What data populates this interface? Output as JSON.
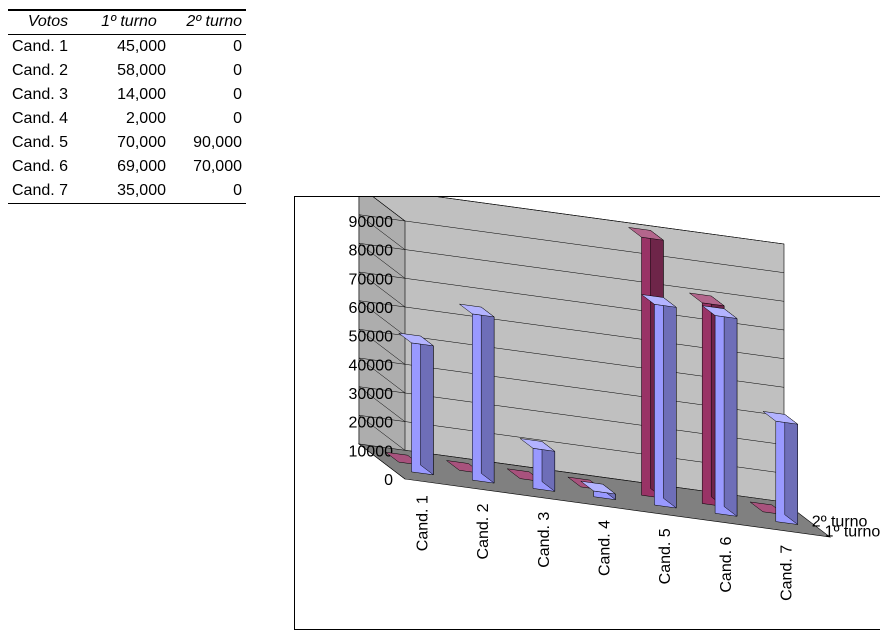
{
  "table": {
    "headers": [
      "Votos",
      "1º turno",
      "2º turno"
    ],
    "rows": [
      [
        "Cand. 1",
        "45,000",
        "0"
      ],
      [
        "Cand. 2",
        "58,000",
        "0"
      ],
      [
        "Cand. 3",
        "14,000",
        "0"
      ],
      [
        "Cand. 4",
        "2,000",
        "0"
      ],
      [
        "Cand. 5",
        "70,000",
        "90,000"
      ],
      [
        "Cand. 6",
        "69,000",
        "70,000"
      ],
      [
        "Cand. 7",
        "35,000",
        "0"
      ]
    ]
  },
  "chart_data": {
    "type": "bar",
    "style": "3d-column",
    "categories": [
      "Cand. 1",
      "Cand. 2",
      "Cand. 3",
      "Cand. 4",
      "Cand. 5",
      "Cand. 6",
      "Cand. 7"
    ],
    "series": [
      {
        "name": "1º turno",
        "values": [
          45000,
          58000,
          14000,
          2000,
          70000,
          69000,
          35000
        ],
        "color": "#9999ff"
      },
      {
        "name": "2º turno",
        "values": [
          0,
          0,
          0,
          0,
          90000,
          70000,
          0
        ],
        "color": "#993366"
      }
    ],
    "yticks": [
      "0",
      "10000",
      "20000",
      "30000",
      "40000",
      "50000",
      "60000",
      "70000",
      "80000",
      "90000"
    ],
    "ylim": [
      0,
      90000
    ],
    "grid": true,
    "wall_color": "#c0c0c0",
    "floor_color": "#808080"
  }
}
